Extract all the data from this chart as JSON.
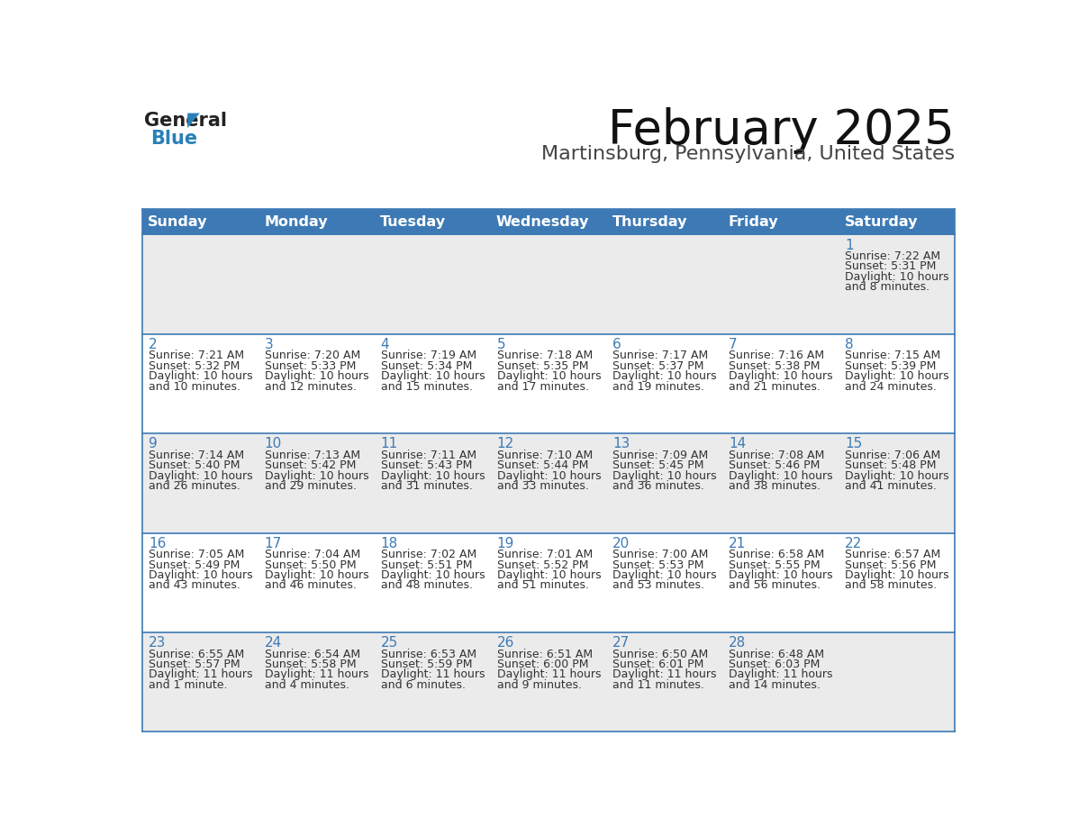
{
  "title": "February 2025",
  "subtitle": "Martinsburg, Pennsylvania, United States",
  "days_of_week": [
    "Sunday",
    "Monday",
    "Tuesday",
    "Wednesday",
    "Thursday",
    "Friday",
    "Saturday"
  ],
  "header_bg": "#3d7ab5",
  "header_text": "#ffffff",
  "row_bg_odd": "#ebebeb",
  "row_bg_even": "#ffffff",
  "border_color": "#3d7ab5",
  "day_num_color": "#3d7ab5",
  "cell_text_color": "#333333",
  "title_color": "#111111",
  "subtitle_color": "#444444",
  "logo_general_color": "#222222",
  "logo_blue_color": "#2980b9",
  "logo_triangle_color": "#2980b9",
  "calendar_data": [
    [
      null,
      null,
      null,
      null,
      null,
      null,
      {
        "day": 1,
        "sunrise": "7:22 AM",
        "sunset": "5:31 PM",
        "daylight_main": "Daylight: 10 hours",
        "daylight_sub": "and 8 minutes."
      }
    ],
    [
      {
        "day": 2,
        "sunrise": "7:21 AM",
        "sunset": "5:32 PM",
        "daylight_main": "Daylight: 10 hours",
        "daylight_sub": "and 10 minutes."
      },
      {
        "day": 3,
        "sunrise": "7:20 AM",
        "sunset": "5:33 PM",
        "daylight_main": "Daylight: 10 hours",
        "daylight_sub": "and 12 minutes."
      },
      {
        "day": 4,
        "sunrise": "7:19 AM",
        "sunset": "5:34 PM",
        "daylight_main": "Daylight: 10 hours",
        "daylight_sub": "and 15 minutes."
      },
      {
        "day": 5,
        "sunrise": "7:18 AM",
        "sunset": "5:35 PM",
        "daylight_main": "Daylight: 10 hours",
        "daylight_sub": "and 17 minutes."
      },
      {
        "day": 6,
        "sunrise": "7:17 AM",
        "sunset": "5:37 PM",
        "daylight_main": "Daylight: 10 hours",
        "daylight_sub": "and 19 minutes."
      },
      {
        "day": 7,
        "sunrise": "7:16 AM",
        "sunset": "5:38 PM",
        "daylight_main": "Daylight: 10 hours",
        "daylight_sub": "and 21 minutes."
      },
      {
        "day": 8,
        "sunrise": "7:15 AM",
        "sunset": "5:39 PM",
        "daylight_main": "Daylight: 10 hours",
        "daylight_sub": "and 24 minutes."
      }
    ],
    [
      {
        "day": 9,
        "sunrise": "7:14 AM",
        "sunset": "5:40 PM",
        "daylight_main": "Daylight: 10 hours",
        "daylight_sub": "and 26 minutes."
      },
      {
        "day": 10,
        "sunrise": "7:13 AM",
        "sunset": "5:42 PM",
        "daylight_main": "Daylight: 10 hours",
        "daylight_sub": "and 29 minutes."
      },
      {
        "day": 11,
        "sunrise": "7:11 AM",
        "sunset": "5:43 PM",
        "daylight_main": "Daylight: 10 hours",
        "daylight_sub": "and 31 minutes."
      },
      {
        "day": 12,
        "sunrise": "7:10 AM",
        "sunset": "5:44 PM",
        "daylight_main": "Daylight: 10 hours",
        "daylight_sub": "and 33 minutes."
      },
      {
        "day": 13,
        "sunrise": "7:09 AM",
        "sunset": "5:45 PM",
        "daylight_main": "Daylight: 10 hours",
        "daylight_sub": "and 36 minutes."
      },
      {
        "day": 14,
        "sunrise": "7:08 AM",
        "sunset": "5:46 PM",
        "daylight_main": "Daylight: 10 hours",
        "daylight_sub": "and 38 minutes."
      },
      {
        "day": 15,
        "sunrise": "7:06 AM",
        "sunset": "5:48 PM",
        "daylight_main": "Daylight: 10 hours",
        "daylight_sub": "and 41 minutes."
      }
    ],
    [
      {
        "day": 16,
        "sunrise": "7:05 AM",
        "sunset": "5:49 PM",
        "daylight_main": "Daylight: 10 hours",
        "daylight_sub": "and 43 minutes."
      },
      {
        "day": 17,
        "sunrise": "7:04 AM",
        "sunset": "5:50 PM",
        "daylight_main": "Daylight: 10 hours",
        "daylight_sub": "and 46 minutes."
      },
      {
        "day": 18,
        "sunrise": "7:02 AM",
        "sunset": "5:51 PM",
        "daylight_main": "Daylight: 10 hours",
        "daylight_sub": "and 48 minutes."
      },
      {
        "day": 19,
        "sunrise": "7:01 AM",
        "sunset": "5:52 PM",
        "daylight_main": "Daylight: 10 hours",
        "daylight_sub": "and 51 minutes."
      },
      {
        "day": 20,
        "sunrise": "7:00 AM",
        "sunset": "5:53 PM",
        "daylight_main": "Daylight: 10 hours",
        "daylight_sub": "and 53 minutes."
      },
      {
        "day": 21,
        "sunrise": "6:58 AM",
        "sunset": "5:55 PM",
        "daylight_main": "Daylight: 10 hours",
        "daylight_sub": "and 56 minutes."
      },
      {
        "day": 22,
        "sunrise": "6:57 AM",
        "sunset": "5:56 PM",
        "daylight_main": "Daylight: 10 hours",
        "daylight_sub": "and 58 minutes."
      }
    ],
    [
      {
        "day": 23,
        "sunrise": "6:55 AM",
        "sunset": "5:57 PM",
        "daylight_main": "Daylight: 11 hours",
        "daylight_sub": "and 1 minute."
      },
      {
        "day": 24,
        "sunrise": "6:54 AM",
        "sunset": "5:58 PM",
        "daylight_main": "Daylight: 11 hours",
        "daylight_sub": "and 4 minutes."
      },
      {
        "day": 25,
        "sunrise": "6:53 AM",
        "sunset": "5:59 PM",
        "daylight_main": "Daylight: 11 hours",
        "daylight_sub": "and 6 minutes."
      },
      {
        "day": 26,
        "sunrise": "6:51 AM",
        "sunset": "6:00 PM",
        "daylight_main": "Daylight: 11 hours",
        "daylight_sub": "and 9 minutes."
      },
      {
        "day": 27,
        "sunrise": "6:50 AM",
        "sunset": "6:01 PM",
        "daylight_main": "Daylight: 11 hours",
        "daylight_sub": "and 11 minutes."
      },
      {
        "day": 28,
        "sunrise": "6:48 AM",
        "sunset": "6:03 PM",
        "daylight_main": "Daylight: 11 hours",
        "daylight_sub": "and 14 minutes."
      },
      null
    ]
  ],
  "fig_width": 11.88,
  "fig_height": 9.18,
  "dpi": 100
}
